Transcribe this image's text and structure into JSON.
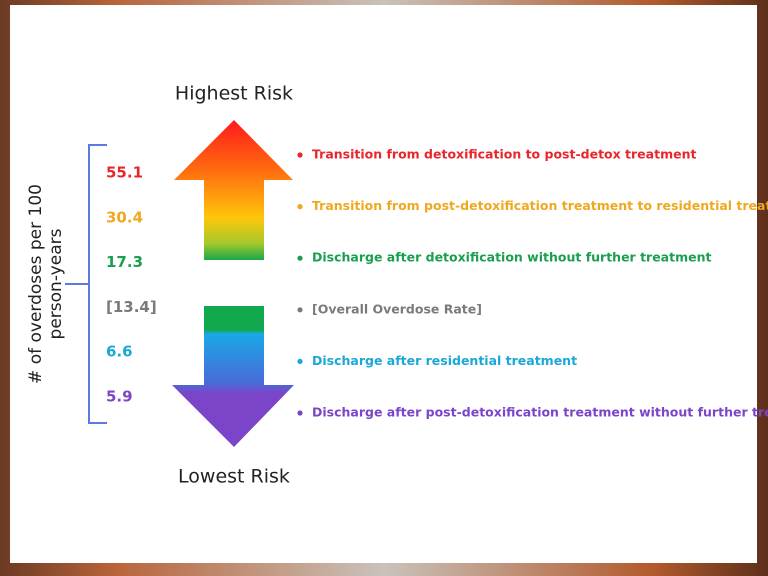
{
  "header": {
    "top": "Highest Risk",
    "bottom": "Lowest Risk"
  },
  "axis_label": [
    "# of overdoses per 100",
    "person-years"
  ],
  "items": [
    {
      "rate": "55.1",
      "label": "Transition from detoxification to post-detox treatment",
      "color": "#e8262b"
    },
    {
      "rate": "30.4",
      "label": "Transition from post-detoxification treatment to residential treatment",
      "color": "#f0a820"
    },
    {
      "rate": "17.3",
      "label": "Discharge after detoxification without further treatment",
      "color": "#1a9e50"
    },
    {
      "rate": "[13.4]",
      "label": "[Overall Overdose Rate]",
      "color": "#7a7a7a"
    },
    {
      "rate": "6.6",
      "label": "Discharge after residential treatment",
      "color": "#1aa8d8"
    },
    {
      "rate": "5.9",
      "label": "Discharge after post-detoxification treatment without further treatment",
      "color": "#7a45c8"
    }
  ]
}
